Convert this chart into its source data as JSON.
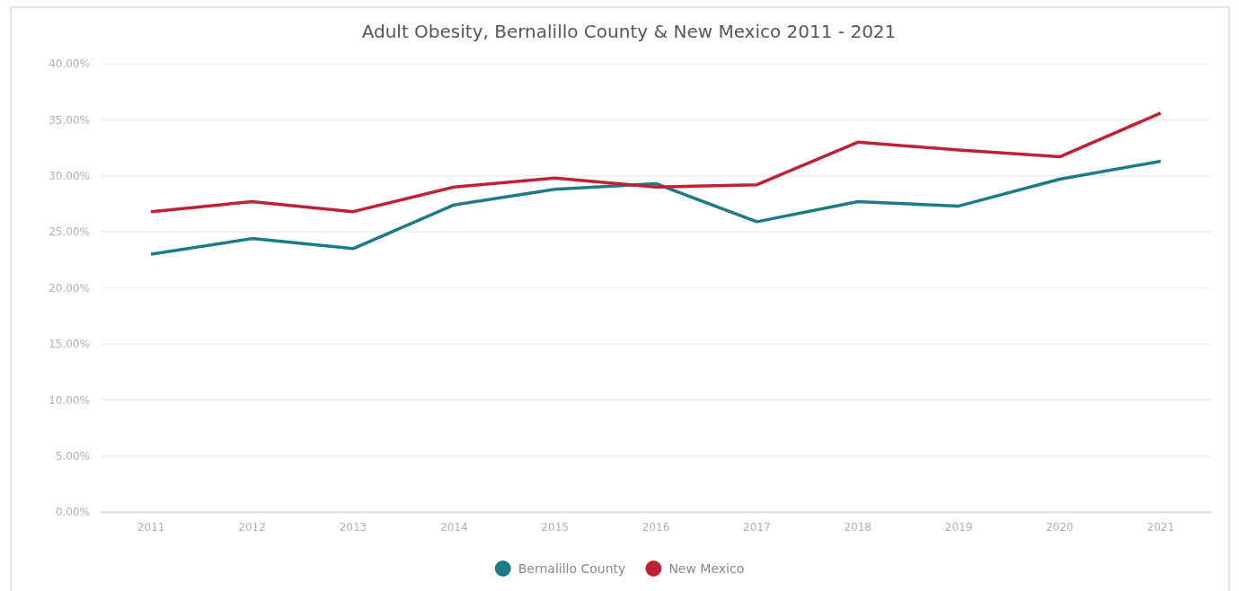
{
  "chart_data": {
    "type": "line",
    "title": "Adult Obesity, Bernalillo County & New Mexico 2011 - 2021",
    "categories": [
      "2011",
      "2012",
      "2013",
      "2014",
      "2015",
      "2016",
      "2017",
      "2018",
      "2019",
      "2020",
      "2021"
    ],
    "series": [
      {
        "name": "Bernalillo County",
        "color": "#1b7c85",
        "values": [
          23.0,
          24.4,
          23.5,
          27.4,
          28.8,
          29.3,
          25.9,
          27.7,
          27.3,
          29.7,
          31.3
        ]
      },
      {
        "name": "New Mexico",
        "color": "#c02136",
        "values": [
          26.8,
          27.7,
          26.8,
          29.0,
          29.8,
          29.0,
          29.2,
          33.0,
          32.3,
          31.7,
          35.6
        ]
      }
    ],
    "ylim": [
      0,
      40
    ],
    "yticks": [
      {
        "value": 0,
        "label": "0.00%"
      },
      {
        "value": 5,
        "label": "5.00%"
      },
      {
        "value": 10,
        "label": "10.00%"
      },
      {
        "value": 15,
        "label": "15.00%"
      },
      {
        "value": 20,
        "label": "20.00%"
      },
      {
        "value": 25,
        "label": "25.00%"
      },
      {
        "value": 30,
        "label": "30.00%"
      },
      {
        "value": 35,
        "label": "35.00%"
      },
      {
        "value": 40,
        "label": "40.00%"
      }
    ],
    "grid": "y",
    "legend": "bottom",
    "marker": "none",
    "line_style": "solid"
  }
}
